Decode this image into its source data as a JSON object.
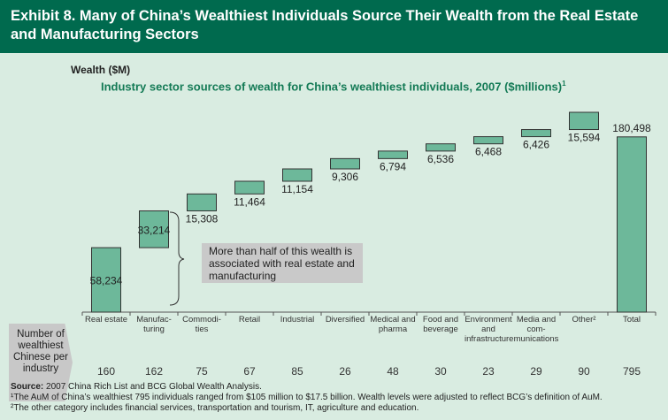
{
  "header": {
    "title": "Exhibit 8. Many of China’s Wealthiest Individuals Source Their Wealth from the Real Estate and Manufacturing Sectors"
  },
  "chart_data": {
    "type": "waterfall",
    "title": "Industry sector sources of wealth for China’s wealthiest individuals, 2007 ($millions)",
    "title_sup": "1",
    "ylabel": "Wealth ($M)",
    "categories": [
      "Real estate",
      "Manufac-turing",
      "Commodi-ties",
      "Retail",
      "Industrial",
      "Diversified",
      "Medical and pharma",
      "Food and beverage",
      "Environment and infrastructure",
      "Media and com-munications",
      "Other²",
      "Total"
    ],
    "values": [
      58234,
      33214,
      15308,
      11464,
      11154,
      9306,
      6794,
      6536,
      6468,
      6426,
      15594,
      180498
    ],
    "value_labels": [
      "58,234",
      "33,214",
      "15,308",
      "11,464",
      "11,154",
      "9,306",
      "6,794",
      "6,536",
      "6,468",
      "6,426",
      "15,594",
      "180,498"
    ],
    "counts_label": "Number of wealthiest Chinese per industry",
    "counts": [
      "160",
      "162",
      "75",
      "67",
      "85",
      "26",
      "48",
      "30",
      "23",
      "29",
      "90",
      "795"
    ],
    "annotation": "More than half of this wealth is associated with real estate and manufacturing",
    "colors": {
      "bar": "#6db89a",
      "header": "#006a4e",
      "title": "#137a55"
    }
  },
  "footer": {
    "source_label": "Source:",
    "source": " 2007 China Rich List and BCG Global Wealth Analysis.",
    "note1": "¹The AuM of China’s wealthiest 795 individuals ranged from $105 million to $17.5 billion.  Wealth levels were adjusted to reflect BCG’s definition of AuM.",
    "note2": "²The other category includes financial services, transportation and tourism, IT, agriculture and education."
  }
}
